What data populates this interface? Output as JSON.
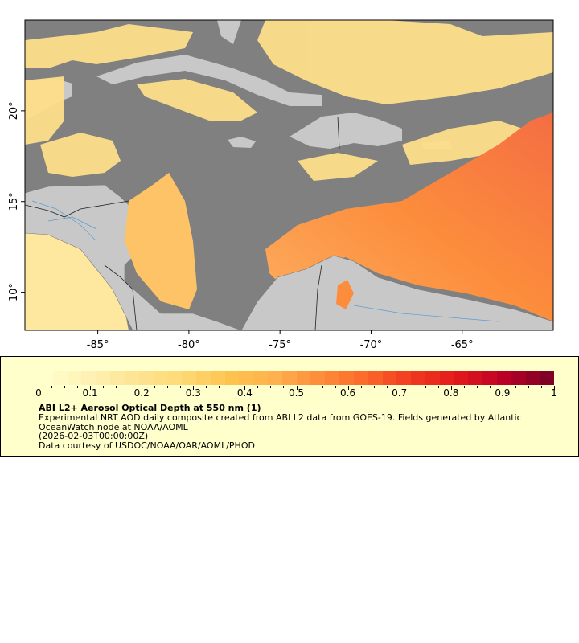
{
  "map": {
    "lon_range": [
      -89,
      -60
    ],
    "lat_range": [
      7.9,
      25
    ],
    "lon_ticks": [
      "-85°",
      "-80°",
      "-75°",
      "-70°",
      "-65°"
    ],
    "lat_ticks": [
      "20°",
      "15°",
      "10°"
    ],
    "colors": {
      "ocean_no_data": "#808080",
      "land": "#c8c8c8",
      "rivers": "#5b9bd5",
      "borders": "#777777"
    }
  },
  "legend": {
    "scale_min": 0,
    "scale_max": 1,
    "tick_labels": [
      "0",
      "0.1",
      "0.2",
      "0.3",
      "0.4",
      "0.5",
      "0.6",
      "0.7",
      "0.8",
      "0.9",
      "1"
    ],
    "colors": [
      "#ffffcc",
      "#fff0b3",
      "#fee391",
      "#fed976",
      "#fec44f",
      "#feb24c",
      "#fd8d3c",
      "#fc6a2a",
      "#f03b20",
      "#e31a1c",
      "#bd0026",
      "#800026"
    ],
    "title": "ABI L2+ Aerosol Optical Depth at 550 nm (1)",
    "description": "Experimental NRT AOD daily composite created from ABI L2 data from GOES-19. Fields generated by Atlantic OceanWatch node at NOAA/AOML",
    "time": "(2026-02-03T00:00:00Z)",
    "credit": "Data courtesy of USDOC/NOAA/OAR/AOML/PHOD"
  }
}
